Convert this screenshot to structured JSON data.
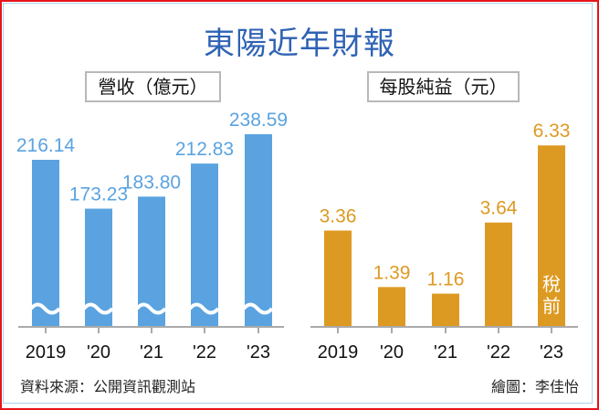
{
  "title": "東陽近年財報",
  "source": "資料來源：公開資訊觀測站",
  "credit": "繪圖：李佳怡",
  "colors": {
    "revenue": "#5aa3e0",
    "eps": "#dd9a22",
    "title": "#2f62b4"
  },
  "chart_data": [
    {
      "type": "bar",
      "title": "營收（億元）",
      "categories": [
        "2019",
        "'20",
        "'21",
        "'22",
        "'23"
      ],
      "values": [
        216.14,
        173.23,
        183.8,
        212.83,
        238.59
      ],
      "labels": [
        "216.14",
        "173.23",
        "183.80",
        "212.83",
        "238.59"
      ],
      "axis_break": true
    },
    {
      "type": "bar",
      "title": "每股純益（元）",
      "categories": [
        "2019",
        "'20",
        "'21",
        "'22",
        "'23"
      ],
      "values": [
        3.36,
        1.39,
        1.16,
        3.64,
        6.33
      ],
      "labels": [
        "3.36",
        "1.39",
        "1.16",
        "3.64",
        "6.33"
      ],
      "annotation": "稅前",
      "annotation_index": 4,
      "ylim": [
        0,
        6.33
      ]
    }
  ]
}
